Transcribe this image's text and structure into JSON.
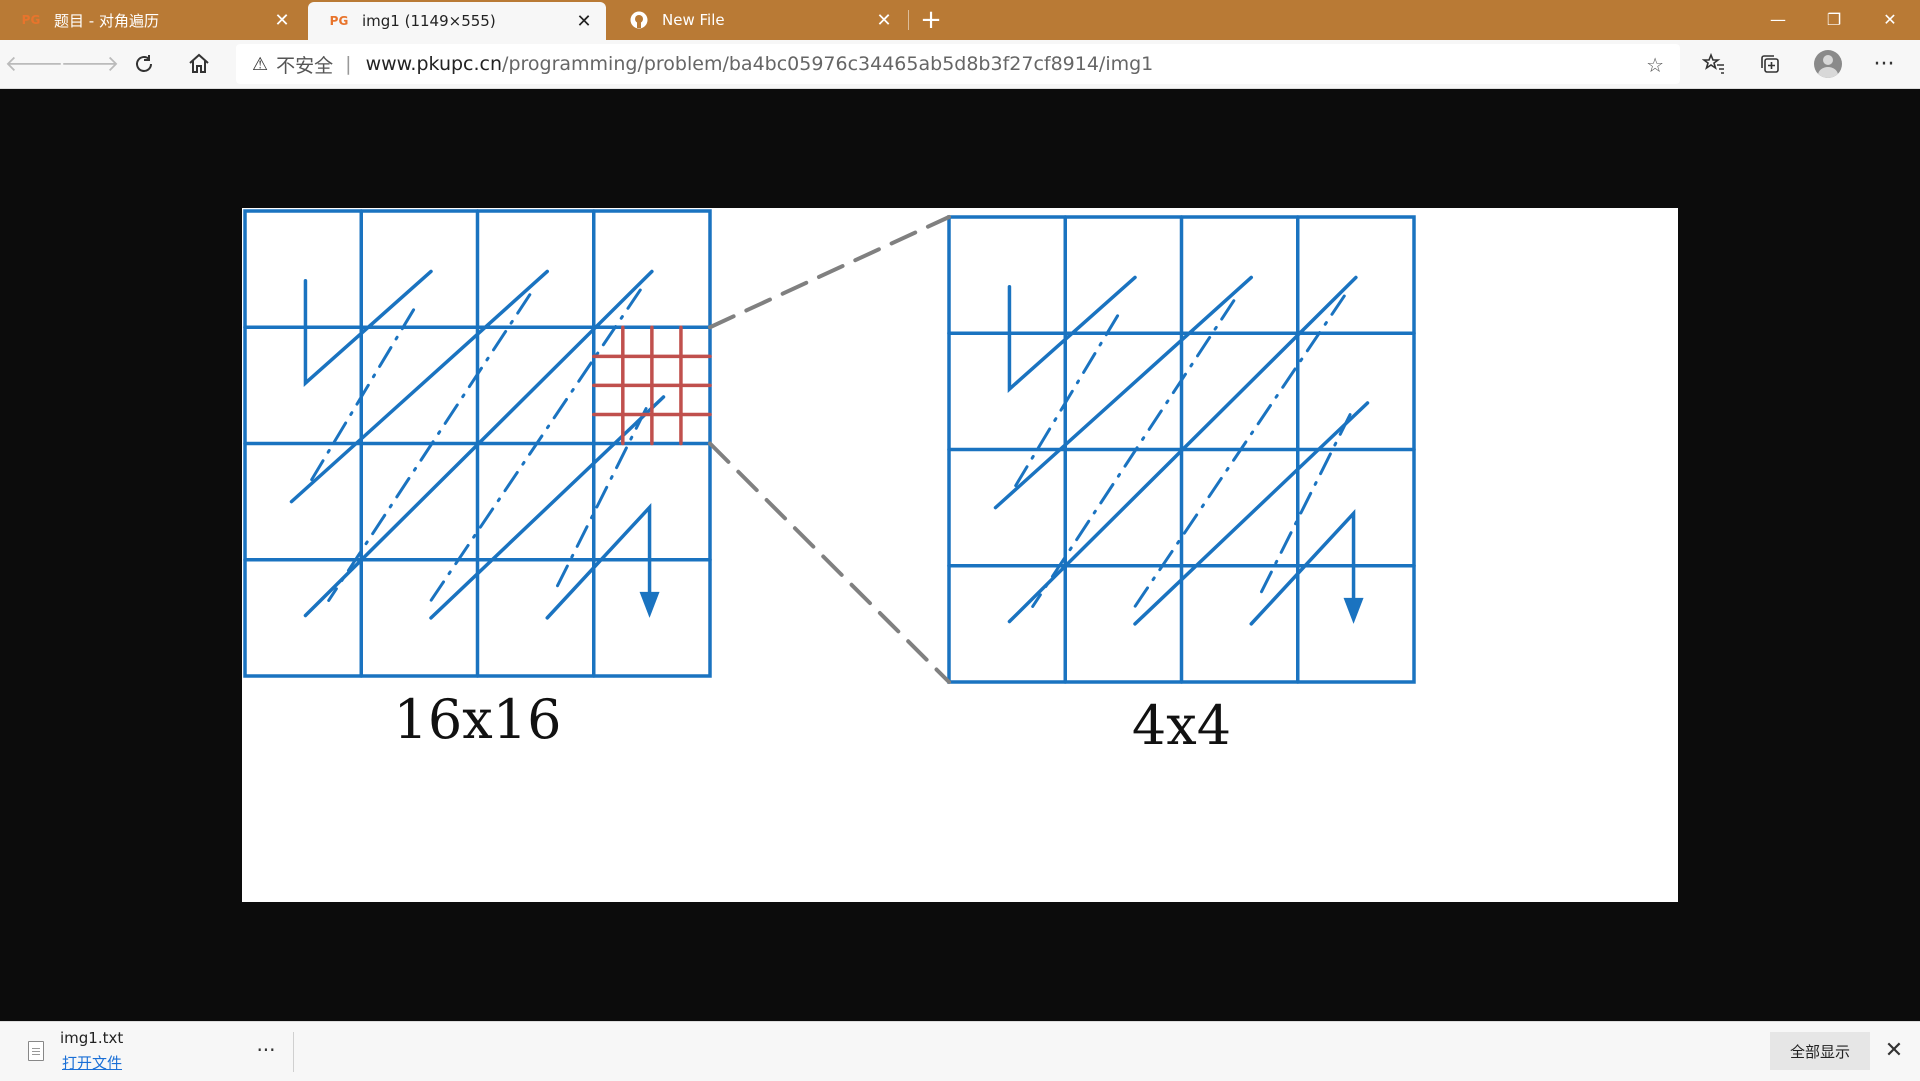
{
  "tabs": [
    {
      "favicon": "PG",
      "title": "题目 - 对角遍历",
      "active": false
    },
    {
      "favicon": "PG",
      "title": "img1 (1149×555)",
      "active": true
    },
    {
      "favicon": "github-icon",
      "title": "New File",
      "active": false
    }
  ],
  "window_controls": {
    "minimize": "—",
    "restore": "❐",
    "close": "✕"
  },
  "address_bar": {
    "security_label": "不安全",
    "separator": "|",
    "url_host": "www.pkupc.cn",
    "url_path": "/programming/problem/ba4bc05976c34465ab5d8b3f27cf8914/img1"
  },
  "figure": {
    "left_label": "16x16",
    "right_label": "4x4",
    "grid_color": "#1a73c0",
    "highlight_color": "#c0504d",
    "connector_color": "#808080"
  },
  "download_bar": {
    "file_name": "img1.txt",
    "open_label": "打开文件",
    "more": "···",
    "show_all_label": "全部显示",
    "close": "✕"
  }
}
